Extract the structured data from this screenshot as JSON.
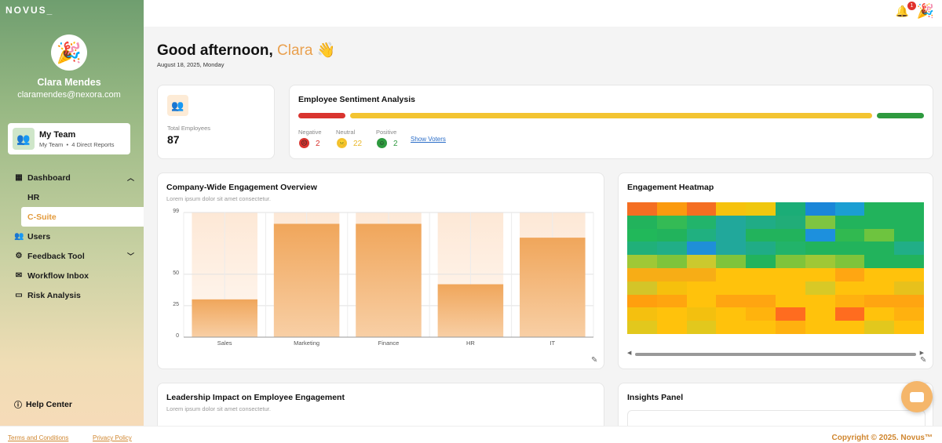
{
  "brand": "NOVUS_",
  "user": {
    "name": "Clara Mendes",
    "email": "claramendes@nexora.com",
    "avatar_icon": "party-popper-icon"
  },
  "team": {
    "title": "My Team",
    "subtitle": "My Team",
    "reports": "4 Direct Reports"
  },
  "nav": {
    "dashboard": "Dashboard",
    "hr": "HR",
    "csuite": "C-Suite",
    "users": "Users",
    "feedback": "Feedback Tool",
    "workflow": "Workflow Inbox",
    "risk": "Risk Analysis",
    "help": "Help Center"
  },
  "notifications": {
    "count": "1"
  },
  "greeting": {
    "prefix": "Good afternoon,",
    "name": "Clara",
    "wave": "👋",
    "date": "August 18, 2025, Monday"
  },
  "employees": {
    "label": "Total Employees",
    "value": "87"
  },
  "sentiment": {
    "title": "Employee Sentiment Analysis",
    "negative": {
      "label": "Negative",
      "count": "2"
    },
    "neutral": {
      "label": "Neutral",
      "count": "22"
    },
    "positive": {
      "label": "Positive",
      "count": "2"
    },
    "show_voters": "Show Voters",
    "colors": {
      "negative": "#d9342f",
      "neutral": "#f3c431",
      "positive": "#2e9a3f"
    }
  },
  "engagement": {
    "title": "Company-Wide Engagement Overview",
    "subtitle": "Lorem ipsum dolor sit amet consectetur."
  },
  "chart_data": {
    "type": "bar",
    "categories": [
      "Sales",
      "Marketing",
      "Finance",
      "HR",
      "IT"
    ],
    "values": [
      30,
      90,
      90,
      42,
      79
    ],
    "yticks": [
      "99",
      "50",
      "25",
      "0"
    ],
    "ytick_values": [
      99,
      50,
      25,
      0
    ],
    "ylim": [
      0,
      99
    ],
    "title": "Company-Wide Engagement Overview",
    "xlabel": "",
    "ylabel": ""
  },
  "heatmap": {
    "title": "Engagement Heatmap",
    "rows": [
      [
        "#f46e22",
        "#fb9a0f",
        "#f46e22",
        "#f6c20d",
        "#f0c70e",
        "#1bad77",
        "#1a86d8",
        "#1b9ed3",
        "#22b35c",
        "#22b35c"
      ],
      [
        "#22b35c",
        "#34bb55",
        "#22b46b",
        "#21a89b",
        "#20ac86",
        "#21ad78",
        "#7ec540",
        "#22b35c",
        "#22b35c",
        "#22b35c"
      ],
      [
        "#21b85a",
        "#22b35c",
        "#20b080",
        "#21a89b",
        "#22b35c",
        "#22b35c",
        "#1d90dd",
        "#31b950",
        "#6ec43f",
        "#22b35c"
      ],
      [
        "#20b079",
        "#21ae87",
        "#1f8fd8",
        "#21a89b",
        "#20ac86",
        "#22b36a",
        "#22b35c",
        "#22b35c",
        "#22b35c",
        "#21ae87"
      ],
      [
        "#9fc836",
        "#7fc43b",
        "#cbc92e",
        "#7fc43b",
        "#22b35c",
        "#7fc43b",
        "#9fc836",
        "#7fc43b",
        "#22b35c",
        "#22b35c"
      ],
      [
        "#f7ad16",
        "#f7ad16",
        "#f7ad16",
        "#ffc20c",
        "#ffc20c",
        "#ffc20c",
        "#ffc20c",
        "#ffa612",
        "#ffc20c",
        "#ffc20c"
      ],
      [
        "#d4c528",
        "#f6c00d",
        "#ffc20c",
        "#ffc20c",
        "#ffc20c",
        "#ffc20c",
        "#d8c926",
        "#ffc20c",
        "#ffc20c",
        "#e7c11c"
      ],
      [
        "#ff9f0e",
        "#ffa50f",
        "#ffc20c",
        "#ffa511",
        "#ffa511",
        "#ffc20c",
        "#ffc20c",
        "#ffb10f",
        "#ffa511",
        "#ffa511"
      ],
      [
        "#f5c00f",
        "#ffc20c",
        "#f3c00f",
        "#ffc20c",
        "#ffb30d",
        "#ff6c1f",
        "#ffc20c",
        "#ff6c1f",
        "#ffc20c",
        "#ffb10f"
      ],
      [
        "#e2c81d",
        "#ffc20c",
        "#e2c81d",
        "#ffc20c",
        "#ffc20c",
        "#ffb10f",
        "#ffc20c",
        "#ffc20c",
        "#e2c81d",
        "#ffc20c"
      ]
    ]
  },
  "leadership": {
    "title": "Leadership Impact on Employee Engagement",
    "subtitle": "Lorem ipsum dolor sit amet consectetur."
  },
  "insights": {
    "title": "Insights Panel"
  },
  "footer": {
    "terms": "Terms and Conditions",
    "privacy": "Privacy Policy",
    "copyright": "Copyright © 2025. Novus™"
  }
}
